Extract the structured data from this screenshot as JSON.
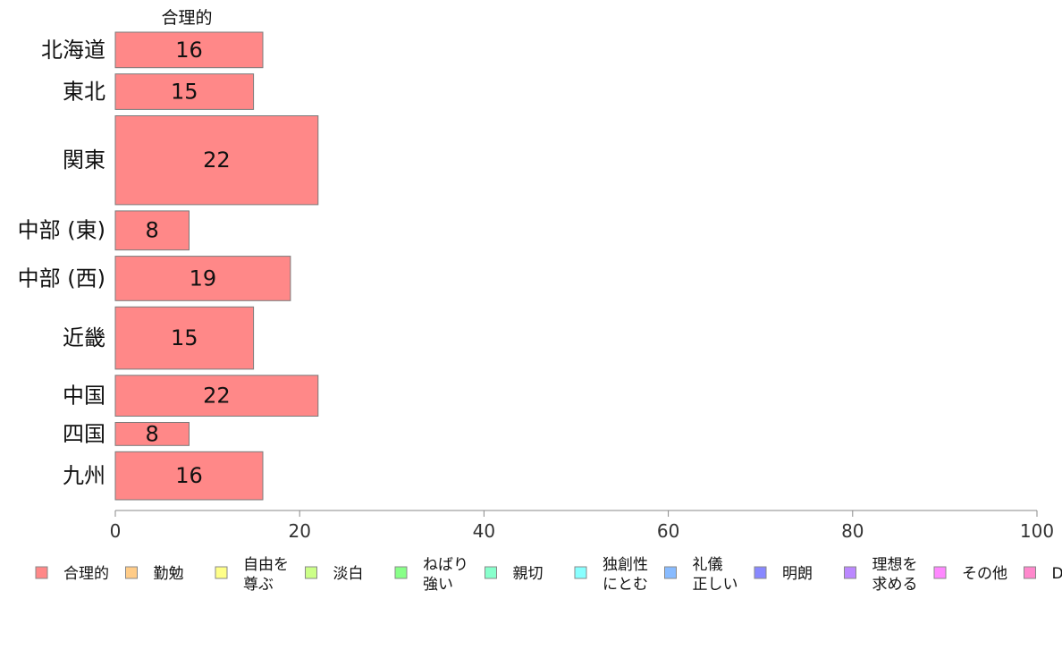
{
  "chart_data": {
    "type": "bar",
    "orientation": "horizontal",
    "series_title": "合理的",
    "categories": [
      "北海道",
      "東北",
      "関東",
      "中部 (東)",
      "中部 (西)",
      "近畿",
      "中国",
      "四国",
      "九州"
    ],
    "series": [
      {
        "name": "合理的",
        "color": "#ff8888",
        "values": [
          16,
          15,
          22,
          8,
          19,
          15,
          22,
          8,
          16
        ],
        "labels": [
          "16",
          "15",
          "22",
          "8",
          "19",
          "15",
          "22",
          "8",
          "16"
        ]
      }
    ],
    "category_weights": [
      2,
      2,
      5,
      2.2,
      2.5,
      3.5,
      2.3,
      1.3,
      2.7
    ],
    "xlim": [
      0,
      100
    ],
    "xticks": [
      0,
      20,
      40,
      60,
      80,
      100
    ],
    "legend_position": "bottom",
    "legend": [
      {
        "lines": [
          "合理的"
        ],
        "color": "#ff8888"
      },
      {
        "lines": [
          "勤勉"
        ],
        "color": "#ffcc88"
      },
      {
        "lines": [
          "自由を",
          "尊ぶ"
        ],
        "color": "#ffff88"
      },
      {
        "lines": [
          "淡白"
        ],
        "color": "#ccff88"
      },
      {
        "lines": [
          "ねばり",
          "強い"
        ],
        "color": "#88ff88"
      },
      {
        "lines": [
          "親切"
        ],
        "color": "#88ffcc"
      },
      {
        "lines": [
          "独創性",
          "にとむ"
        ],
        "color": "#88ffff"
      },
      {
        "lines": [
          "礼儀",
          "正しい"
        ],
        "color": "#88bbff"
      },
      {
        "lines": [
          "明朗"
        ],
        "color": "#8888ff"
      },
      {
        "lines": [
          "理想を",
          "求める"
        ],
        "color": "#bb88ff"
      },
      {
        "lines": [
          "その他"
        ],
        "color": "#ff88ff"
      },
      {
        "lines": [
          "D"
        ],
        "color": "#ff88cc"
      }
    ]
  }
}
